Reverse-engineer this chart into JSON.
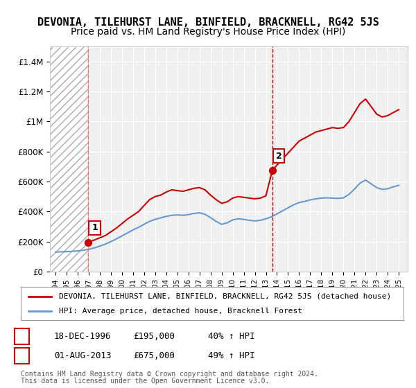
{
  "title": "DEVONIA, TILEHURST LANE, BINFIELD, BRACKNELL, RG42 5JS",
  "subtitle": "Price paid vs. HM Land Registry's House Price Index (HPI)",
  "title_fontsize": 11,
  "subtitle_fontsize": 10,
  "background_color": "#ffffff",
  "plot_bg_color": "#f0f0f0",
  "hatch_region_end_year": 1997.2,
  "ylim": [
    0,
    1500000
  ],
  "yticks": [
    0,
    200000,
    400000,
    600000,
    800000,
    1000000,
    1200000,
    1400000
  ],
  "ytick_labels": [
    "£0",
    "£200K",
    "£400K",
    "£600K",
    "£800K",
    "£1M",
    "£1.2M",
    "£1.4M"
  ],
  "xlim_start": 1993.5,
  "xlim_end": 2025.8,
  "xticks": [
    1994,
    1995,
    1996,
    1997,
    1998,
    1999,
    2000,
    2001,
    2002,
    2003,
    2004,
    2005,
    2006,
    2007,
    2008,
    2009,
    2010,
    2011,
    2012,
    2013,
    2014,
    2015,
    2016,
    2017,
    2018,
    2019,
    2020,
    2021,
    2022,
    2023,
    2024,
    2025
  ],
  "purchase1_x": 1996.96,
  "purchase1_y": 195000,
  "purchase1_label": "1",
  "purchase1_date": "18-DEC-1996",
  "purchase1_price": "£195,000",
  "purchase1_hpi": "40% ↑ HPI",
  "purchase2_x": 2013.58,
  "purchase2_y": 675000,
  "purchase2_label": "2",
  "purchase2_date": "01-AUG-2013",
  "purchase2_price": "£675,000",
  "purchase2_hpi": "49% ↑ HPI",
  "red_line_color": "#cc0000",
  "blue_line_color": "#6699cc",
  "hatch_color": "#cccccc",
  "vline1_color": "#ff6666",
  "vline2_color": "#cc0000",
  "legend_line1": "DEVONIA, TILEHURST LANE, BINFIELD, BRACKNELL, RG42 5JS (detached house)",
  "legend_line2": "HPI: Average price, detached house, Bracknell Forest",
  "footer1": "Contains HM Land Registry data © Crown copyright and database right 2024.",
  "footer2": "This data is licensed under the Open Government Licence v3.0.",
  "red_hpi_x": [
    1996.96,
    1997.0,
    1997.5,
    1998.0,
    1998.5,
    1999.0,
    1999.5,
    2000.0,
    2000.5,
    2001.0,
    2001.5,
    2002.0,
    2002.5,
    2003.0,
    2003.5,
    2004.0,
    2004.5,
    2005.0,
    2005.5,
    2006.0,
    2006.5,
    2007.0,
    2007.5,
    2008.0,
    2008.5,
    2009.0,
    2009.5,
    2010.0,
    2010.5,
    2011.0,
    2011.5,
    2012.0,
    2012.5,
    2013.0,
    2013.58
  ],
  "red_hpi_y": [
    195000,
    198000,
    210000,
    225000,
    240000,
    265000,
    290000,
    320000,
    350000,
    375000,
    400000,
    440000,
    480000,
    500000,
    510000,
    530000,
    545000,
    540000,
    535000,
    545000,
    555000,
    560000,
    545000,
    510000,
    480000,
    455000,
    465000,
    490000,
    500000,
    495000,
    490000,
    485000,
    490000,
    505000,
    675000
  ],
  "red_hpi_x2": [
    2013.58,
    2014.0,
    2014.5,
    2015.0,
    2015.5,
    2016.0,
    2016.5,
    2017.0,
    2017.5,
    2018.0,
    2018.5,
    2019.0,
    2019.5,
    2020.0,
    2020.5,
    2021.0,
    2021.5,
    2022.0,
    2022.5,
    2023.0,
    2023.5,
    2024.0,
    2024.5,
    2025.0
  ],
  "red_hpi_y2": [
    675000,
    710000,
    750000,
    790000,
    830000,
    870000,
    890000,
    910000,
    930000,
    940000,
    950000,
    960000,
    955000,
    960000,
    1000000,
    1060000,
    1120000,
    1150000,
    1100000,
    1050000,
    1030000,
    1040000,
    1060000,
    1080000
  ],
  "blue_hpi_x": [
    1994.0,
    1994.5,
    1995.0,
    1995.5,
    1996.0,
    1996.5,
    1997.0,
    1997.5,
    1998.0,
    1998.5,
    1999.0,
    1999.5,
    2000.0,
    2000.5,
    2001.0,
    2001.5,
    2002.0,
    2002.5,
    2003.0,
    2003.5,
    2004.0,
    2004.5,
    2005.0,
    2005.5,
    2006.0,
    2006.5,
    2007.0,
    2007.5,
    2008.0,
    2008.5,
    2009.0,
    2009.5,
    2010.0,
    2010.5,
    2011.0,
    2011.5,
    2012.0,
    2012.5,
    2013.0,
    2013.5,
    2014.0,
    2014.5,
    2015.0,
    2015.5,
    2016.0,
    2016.5,
    2017.0,
    2017.5,
    2018.0,
    2018.5,
    2019.0,
    2019.5,
    2020.0,
    2020.5,
    2021.0,
    2021.5,
    2022.0,
    2022.5,
    2023.0,
    2023.5,
    2024.0,
    2024.5,
    2025.0
  ],
  "blue_hpi_y": [
    130000,
    132000,
    133000,
    135000,
    138000,
    142000,
    148000,
    158000,
    170000,
    183000,
    200000,
    218000,
    238000,
    258000,
    278000,
    295000,
    315000,
    335000,
    348000,
    358000,
    368000,
    375000,
    378000,
    375000,
    380000,
    388000,
    392000,
    382000,
    360000,
    335000,
    315000,
    325000,
    345000,
    352000,
    348000,
    342000,
    338000,
    342000,
    352000,
    365000,
    385000,
    405000,
    425000,
    445000,
    460000,
    468000,
    478000,
    485000,
    490000,
    492000,
    490000,
    488000,
    492000,
    515000,
    550000,
    590000,
    610000,
    585000,
    560000,
    548000,
    552000,
    565000,
    575000
  ]
}
